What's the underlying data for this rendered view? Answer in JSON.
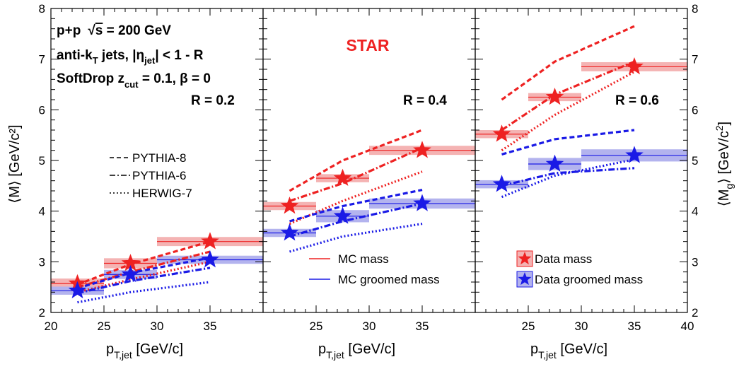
{
  "figure": {
    "exp": "STAR",
    "system": "p+p",
    "sqrt": "√",
    "s": "s",
    "energy": " = 200 GeV",
    "jets_a": "anti-k",
    "jets_T": "T",
    "jets_b": " jets, |η",
    "jets_jet": "jet",
    "jets_c": "| < 1 - R",
    "sd_a": "SoftDrop z",
    "sd_cut": "cut",
    "sd_b": " = 0.1,  β = 0",
    "ylabel_left": "⟨M⟩ [GeV/c²]",
    "yl_a": "⟨M",
    "yl_g": "g",
    "yl_b": "⟩ [GeV/c",
    "yl_2": "2",
    "yl_c": "]",
    "xl_a": "p",
    "xl_sub": "T,jet",
    "xl_b": " [GeV/c]"
  },
  "chart_data": [
    {
      "type": "line",
      "R_label": "R = 0.2",
      "xlim": [
        20,
        40
      ],
      "ylim": [
        2,
        8
      ],
      "xticks": [
        "20",
        "25",
        "30",
        "35"
      ],
      "data_mass": [
        {
          "x": 22.5,
          "y": 2.57,
          "xmin": 20,
          "xmax": 25,
          "sys": 0.1
        },
        {
          "x": 27.5,
          "y": 2.97,
          "xmin": 25,
          "xmax": 30,
          "sys": 0.1
        },
        {
          "x": 35,
          "y": 3.4,
          "xmin": 30,
          "xmax": 40,
          "sys": 0.09
        }
      ],
      "data_groomed": [
        {
          "x": 22.5,
          "y": 2.43,
          "xmin": 20,
          "xmax": 25,
          "sys": 0.08
        },
        {
          "x": 27.5,
          "y": 2.75,
          "xmin": 25,
          "xmax": 30,
          "sys": 0.09
        },
        {
          "x": 35,
          "y": 3.04,
          "xmin": 30,
          "xmax": 40,
          "sys": 0.08
        }
      ],
      "mc_mass": {
        "pythia8": {
          "x": [
            22.5,
            27.5,
            35
          ],
          "y": [
            2.55,
            2.95,
            3.4
          ]
        },
        "pythia6": {
          "x": [
            22.5,
            27.5,
            35
          ],
          "y": [
            2.5,
            2.8,
            3.2
          ]
        },
        "herwig7": {
          "x": [
            22.5,
            27.5,
            35
          ],
          "y": [
            2.4,
            2.65,
            3.0
          ]
        }
      },
      "mc_groomed": {
        "pythia8": {
          "x": [
            22.5,
            27.5,
            35
          ],
          "y": [
            2.48,
            2.78,
            3.08
          ]
        },
        "pythia6": {
          "x": [
            22.5,
            27.5,
            35
          ],
          "y": [
            2.38,
            2.62,
            2.88
          ]
        },
        "herwig7": {
          "x": [
            22.5,
            27.5,
            35
          ],
          "y": [
            2.2,
            2.4,
            2.6
          ]
        }
      }
    },
    {
      "type": "line",
      "R_label": "R = 0.4",
      "xlim": [
        20,
        40
      ],
      "ylim": [
        2,
        8
      ],
      "xticks": [
        "25",
        "30",
        "35"
      ],
      "data_mass": [
        {
          "x": 22.5,
          "y": 4.1,
          "xmin": 20,
          "xmax": 25,
          "sys": 0.08
        },
        {
          "x": 27.5,
          "y": 4.65,
          "xmin": 25,
          "xmax": 30,
          "sys": 0.08
        },
        {
          "x": 35,
          "y": 5.2,
          "xmin": 30,
          "xmax": 40,
          "sys": 0.09
        }
      ],
      "data_groomed": [
        {
          "x": 22.5,
          "y": 3.57,
          "xmin": 20,
          "xmax": 25,
          "sys": 0.08
        },
        {
          "x": 27.5,
          "y": 3.9,
          "xmin": 25,
          "xmax": 30,
          "sys": 0.12
        },
        {
          "x": 35,
          "y": 4.15,
          "xmin": 30,
          "xmax": 40,
          "sys": 0.1
        }
      ],
      "mc_mass": {
        "pythia8": {
          "x": [
            22.5,
            27.5,
            35
          ],
          "y": [
            4.4,
            5.0,
            5.6
          ]
        },
        "pythia6": {
          "x": [
            22.5,
            27.5,
            35
          ],
          "y": [
            4.2,
            4.55,
            5.25
          ]
        },
        "herwig7": {
          "x": [
            22.5,
            27.5,
            35
          ],
          "y": [
            3.75,
            4.2,
            4.78
          ]
        }
      },
      "mc_groomed": {
        "pythia8": {
          "x": [
            22.5,
            27.5,
            35
          ],
          "y": [
            3.8,
            4.1,
            4.42
          ]
        },
        "pythia6": {
          "x": [
            22.5,
            27.5,
            35
          ],
          "y": [
            3.5,
            3.8,
            4.15
          ]
        },
        "herwig7": {
          "x": [
            22.5,
            27.5,
            35
          ],
          "y": [
            3.2,
            3.5,
            3.75
          ]
        }
      }
    },
    {
      "type": "line",
      "R_label": "R = 0.6",
      "xlim": [
        20,
        40
      ],
      "ylim": [
        2,
        8
      ],
      "xticks": [
        "25",
        "30",
        "35",
        "40"
      ],
      "data_mass": [
        {
          "x": 22.5,
          "y": 5.52,
          "xmin": 20,
          "xmax": 25,
          "sys": 0.08
        },
        {
          "x": 27.5,
          "y": 6.25,
          "xmin": 25,
          "xmax": 30,
          "sys": 0.08
        },
        {
          "x": 35,
          "y": 6.85,
          "xmin": 30,
          "xmax": 40,
          "sys": 0.09
        }
      ],
      "data_groomed": [
        {
          "x": 22.5,
          "y": 4.53,
          "xmin": 20,
          "xmax": 25,
          "sys": 0.08
        },
        {
          "x": 27.5,
          "y": 4.93,
          "xmin": 25,
          "xmax": 30,
          "sys": 0.12
        },
        {
          "x": 35,
          "y": 5.1,
          "xmin": 30,
          "xmax": 40,
          "sys": 0.12
        }
      ],
      "mc_mass": {
        "pythia8": {
          "x": [
            22.5,
            27.5,
            35
          ],
          "y": [
            6.2,
            6.95,
            7.65
          ]
        },
        "pythia6": {
          "x": [
            22.5,
            27.5,
            35
          ],
          "y": [
            5.6,
            6.3,
            6.95
          ]
        },
        "herwig7": {
          "x": [
            22.5,
            27.5,
            35
          ],
          "y": [
            5.2,
            5.9,
            6.75
          ]
        }
      },
      "mc_groomed": {
        "pythia8": {
          "x": [
            22.5,
            27.5,
            35
          ],
          "y": [
            5.12,
            5.42,
            5.6
          ]
        },
        "pythia6": {
          "x": [
            22.5,
            27.5,
            35
          ],
          "y": [
            4.5,
            4.75,
            4.85
          ]
        },
        "herwig7": {
          "x": [
            22.5,
            27.5,
            35
          ],
          "y": [
            4.28,
            4.7,
            5.02
          ]
        }
      }
    }
  ],
  "y_axis": {
    "ticks": [
      "2",
      "3",
      "4",
      "5",
      "6",
      "7",
      "8"
    ]
  },
  "legend_generators": [
    "PYTHIA-8",
    "PYTHIA-6",
    "HERWIG-7"
  ],
  "legend_mc": [
    "MC mass",
    "MC groomed mass"
  ],
  "legend_data": [
    "Data mass",
    "Data groomed mass"
  ],
  "colors": {
    "red": "#ee2222",
    "blue": "#1a1ae6",
    "red_band": "#f4b3b3",
    "blue_band": "#b3b3ee"
  }
}
